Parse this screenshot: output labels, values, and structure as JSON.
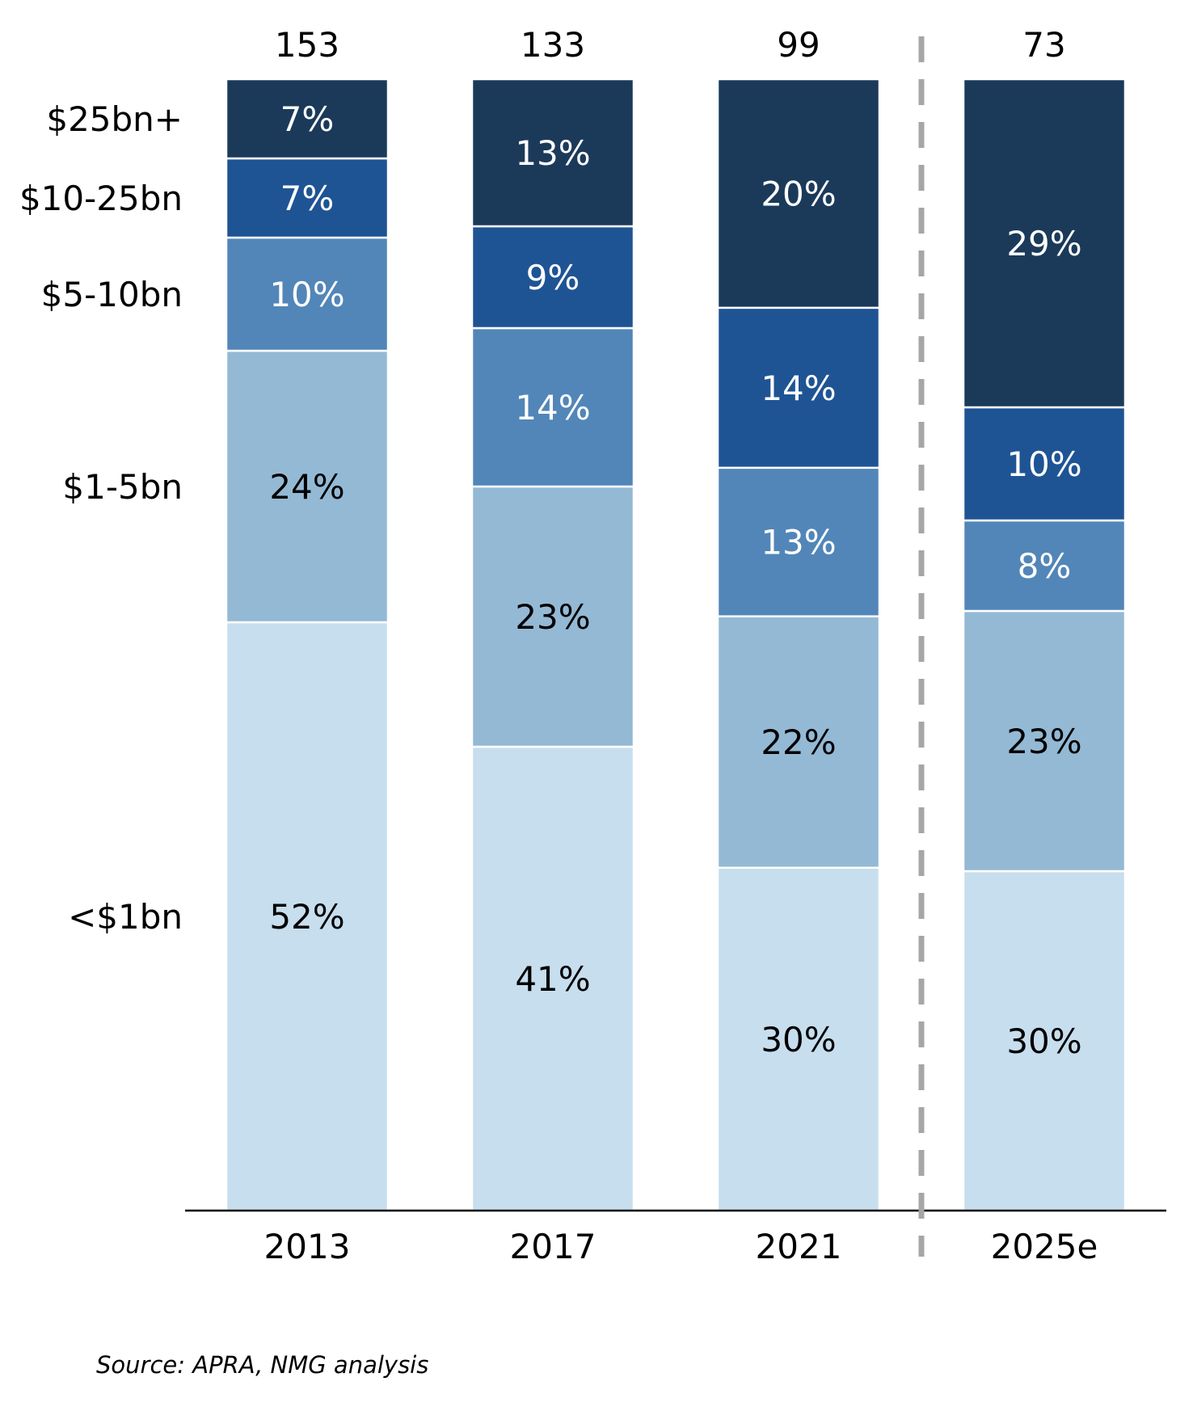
{
  "chart_data": {
    "type": "bar",
    "stacked": true,
    "normalized": true,
    "categories": [
      "2013",
      "2017",
      "2021",
      "2025e"
    ],
    "totals": [
      "153",
      "133",
      "99",
      "73"
    ],
    "series": [
      {
        "name": "<$1bn",
        "color": "#c7deee",
        "values": [
          52,
          41,
          30,
          30
        ],
        "labels": [
          "52%",
          "41%",
          "30%",
          "30%"
        ]
      },
      {
        "name": "$1-5bn",
        "color": "#94b9d4",
        "values": [
          24,
          23,
          22,
          23
        ],
        "labels": [
          "24%",
          "23%",
          "22%",
          "23%"
        ]
      },
      {
        "name": "$5-10bn",
        "color": "#5286b8",
        "values": [
          10,
          14,
          13,
          8
        ],
        "labels": [
          "10%",
          "14%",
          "13%",
          "8%"
        ]
      },
      {
        "name": "$10-25bn",
        "color": "#1f5494",
        "values": [
          7,
          9,
          14,
          10
        ],
        "labels": [
          "7%",
          "9%",
          "14%",
          "10%"
        ]
      },
      {
        "name": "$25bn+",
        "color": "#1b3a5a",
        "values": [
          7,
          13,
          20,
          29
        ],
        "labels": [
          "7%",
          "13%",
          "20%",
          "29%"
        ]
      }
    ],
    "ylim": [
      0,
      100
    ],
    "grid": false,
    "legend": "left",
    "forecast_divider_after": "2021",
    "dark_text_series": [
      "<$1bn",
      "$1-5bn"
    ]
  },
  "source": "Source: APRA, NMG analysis"
}
